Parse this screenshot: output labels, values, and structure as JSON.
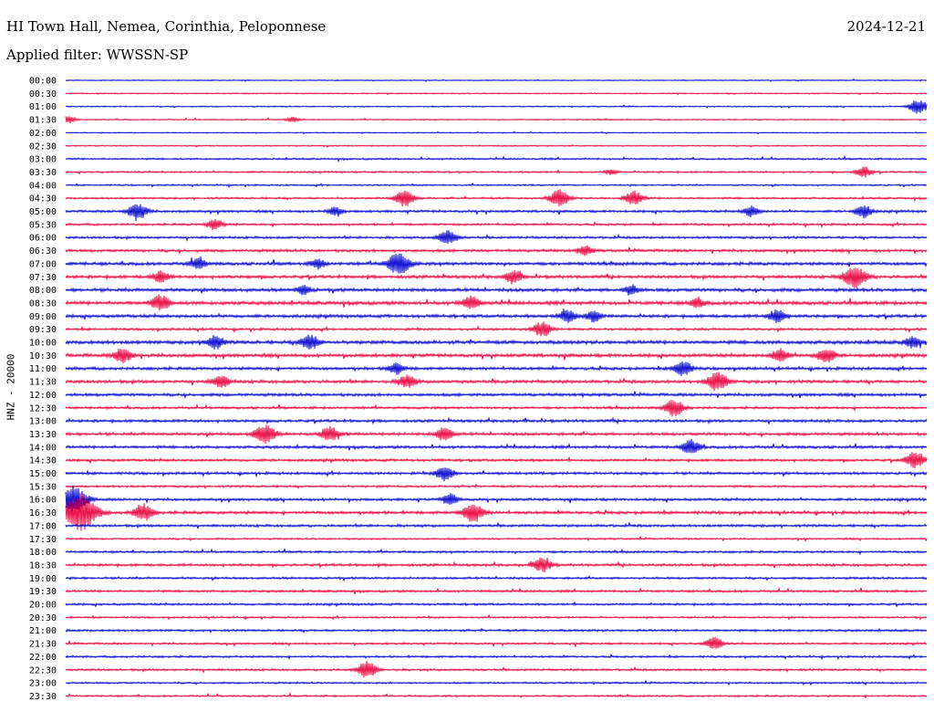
{
  "header": {
    "station": "HI Town Hall, Nemea, Corinthia, Peloponnese",
    "date": "2024-12-21",
    "filter": "Applied filter: WWSSN-SP"
  },
  "channel": "HNZ - 20000",
  "chart_data": {
    "type": "line",
    "title": "HI Town Hall, Nemea, Corinthia, Peloponnese",
    "date": "2024-12-21",
    "filter": "WWSSN-SP",
    "ylabel": "HNZ - 20000",
    "line_minutes": 30,
    "trace_colors": [
      "#0000cc",
      "#e8003c"
    ],
    "grid": false,
    "rows": [
      {
        "time": "00:00",
        "color": "#0000cc",
        "noise": 0.5
      },
      {
        "time": "00:30",
        "color": "#e8003c",
        "noise": 0.6
      },
      {
        "time": "01:00",
        "color": "#0000cc",
        "noise": 0.6
      },
      {
        "time": "01:30",
        "color": "#e8003c",
        "noise": 0.6
      },
      {
        "time": "02:00",
        "color": "#0000cc",
        "noise": 0.5
      },
      {
        "time": "02:30",
        "color": "#e8003c",
        "noise": 0.6
      },
      {
        "time": "03:00",
        "color": "#0000cc",
        "noise": 0.9
      },
      {
        "time": "03:30",
        "color": "#e8003c",
        "noise": 0.9
      },
      {
        "time": "04:00",
        "color": "#0000cc",
        "noise": 0.8
      },
      {
        "time": "04:30",
        "color": "#e8003c",
        "noise": 1.0
      },
      {
        "time": "05:00",
        "color": "#0000cc",
        "noise": 1.2
      },
      {
        "time": "05:30",
        "color": "#e8003c",
        "noise": 1.1
      },
      {
        "time": "06:00",
        "color": "#0000cc",
        "noise": 1.2
      },
      {
        "time": "06:30",
        "color": "#e8003c",
        "noise": 1.4
      },
      {
        "time": "07:00",
        "color": "#0000cc",
        "noise": 1.6
      },
      {
        "time": "07:30",
        "color": "#e8003c",
        "noise": 1.6
      },
      {
        "time": "08:00",
        "color": "#0000cc",
        "noise": 1.7
      },
      {
        "time": "08:30",
        "color": "#e8003c",
        "noise": 1.8
      },
      {
        "time": "09:00",
        "color": "#0000cc",
        "noise": 1.6
      },
      {
        "time": "09:30",
        "color": "#e8003c",
        "noise": 1.2
      },
      {
        "time": "10:00",
        "color": "#0000cc",
        "noise": 1.8
      },
      {
        "time": "10:30",
        "color": "#e8003c",
        "noise": 1.7
      },
      {
        "time": "11:00",
        "color": "#0000cc",
        "noise": 1.5
      },
      {
        "time": "11:30",
        "color": "#e8003c",
        "noise": 1.6
      },
      {
        "time": "12:00",
        "color": "#0000cc",
        "noise": 1.5
      },
      {
        "time": "12:30",
        "color": "#e8003c",
        "noise": 1.2
      },
      {
        "time": "13:00",
        "color": "#0000cc",
        "noise": 1.4
      },
      {
        "time": "13:30",
        "color": "#e8003c",
        "noise": 1.5
      },
      {
        "time": "14:00",
        "color": "#0000cc",
        "noise": 1.4
      },
      {
        "time": "14:30",
        "color": "#e8003c",
        "noise": 1.3
      },
      {
        "time": "15:00",
        "color": "#0000cc",
        "noise": 1.3
      },
      {
        "time": "15:30",
        "color": "#e8003c",
        "noise": 1.1
      },
      {
        "time": "16:00",
        "color": "#0000cc",
        "noise": 1.3
      },
      {
        "time": "16:30",
        "color": "#e8003c",
        "noise": 1.5
      },
      {
        "time": "17:00",
        "color": "#0000cc",
        "noise": 1.3
      },
      {
        "time": "17:30",
        "color": "#e8003c",
        "noise": 0.9
      },
      {
        "time": "18:00",
        "color": "#0000cc",
        "noise": 1.1
      },
      {
        "time": "18:30",
        "color": "#e8003c",
        "noise": 1.3
      },
      {
        "time": "19:00",
        "color": "#0000cc",
        "noise": 1.1
      },
      {
        "time": "19:30",
        "color": "#e8003c",
        "noise": 1.2
      },
      {
        "time": "20:00",
        "color": "#0000cc",
        "noise": 1.1
      },
      {
        "time": "20:30",
        "color": "#e8003c",
        "noise": 0.9
      },
      {
        "time": "21:00",
        "color": "#0000cc",
        "noise": 1.1
      },
      {
        "time": "21:30",
        "color": "#e8003c",
        "noise": 1.0
      },
      {
        "time": "22:00",
        "color": "#0000cc",
        "noise": 1.0
      },
      {
        "time": "22:30",
        "color": "#e8003c",
        "noise": 1.1
      },
      {
        "time": "23:00",
        "color": "#0000cc",
        "noise": 0.9
      },
      {
        "time": "23:30",
        "color": "#e8003c",
        "noise": 0.9
      }
    ],
    "events": [
      {
        "row": 2,
        "minute": 29.7,
        "amplitude": 8
      },
      {
        "row": 3,
        "minute": 0.1,
        "amplitude": 4
      },
      {
        "row": 3,
        "minute": 7.9,
        "amplitude": 3
      },
      {
        "row": 7,
        "minute": 19.0,
        "amplitude": 3
      },
      {
        "row": 7,
        "minute": 27.8,
        "amplitude": 6
      },
      {
        "row": 9,
        "minute": 11.8,
        "amplitude": 9
      },
      {
        "row": 9,
        "minute": 17.2,
        "amplitude": 9
      },
      {
        "row": 9,
        "minute": 19.8,
        "amplitude": 8
      },
      {
        "row": 10,
        "minute": 2.5,
        "amplitude": 9
      },
      {
        "row": 10,
        "minute": 9.4,
        "amplitude": 5
      },
      {
        "row": 10,
        "minute": 23.9,
        "amplitude": 6
      },
      {
        "row": 10,
        "minute": 27.8,
        "amplitude": 7
      },
      {
        "row": 11,
        "minute": 5.2,
        "amplitude": 6
      },
      {
        "row": 12,
        "minute": 13.3,
        "amplitude": 8
      },
      {
        "row": 13,
        "minute": 18.1,
        "amplitude": 5
      },
      {
        "row": 14,
        "minute": 4.6,
        "amplitude": 6
      },
      {
        "row": 14,
        "minute": 8.8,
        "amplitude": 5
      },
      {
        "row": 14,
        "minute": 11.6,
        "amplitude": 12
      },
      {
        "row": 15,
        "minute": 3.3,
        "amplitude": 6
      },
      {
        "row": 15,
        "minute": 15.6,
        "amplitude": 7
      },
      {
        "row": 15,
        "minute": 27.5,
        "amplitude": 12
      },
      {
        "row": 16,
        "minute": 8.3,
        "amplitude": 5
      },
      {
        "row": 16,
        "minute": 19.7,
        "amplitude": 5
      },
      {
        "row": 17,
        "minute": 3.3,
        "amplitude": 8
      },
      {
        "row": 17,
        "minute": 14.1,
        "amplitude": 7
      },
      {
        "row": 17,
        "minute": 22.0,
        "amplitude": 5
      },
      {
        "row": 18,
        "minute": 17.5,
        "amplitude": 7
      },
      {
        "row": 18,
        "minute": 18.4,
        "amplitude": 6
      },
      {
        "row": 18,
        "minute": 24.8,
        "amplitude": 7
      },
      {
        "row": 19,
        "minute": 16.6,
        "amplitude": 8
      },
      {
        "row": 20,
        "minute": 5.2,
        "amplitude": 7
      },
      {
        "row": 20,
        "minute": 8.5,
        "amplitude": 8
      },
      {
        "row": 20,
        "minute": 29.5,
        "amplitude": 6
      },
      {
        "row": 21,
        "minute": 2.0,
        "amplitude": 8
      },
      {
        "row": 21,
        "minute": 24.9,
        "amplitude": 7
      },
      {
        "row": 21,
        "minute": 26.5,
        "amplitude": 8
      },
      {
        "row": 22,
        "minute": 11.5,
        "amplitude": 6
      },
      {
        "row": 22,
        "minute": 21.5,
        "amplitude": 8
      },
      {
        "row": 23,
        "minute": 5.4,
        "amplitude": 7
      },
      {
        "row": 23,
        "minute": 11.9,
        "amplitude": 7
      },
      {
        "row": 23,
        "minute": 22.7,
        "amplitude": 10
      },
      {
        "row": 25,
        "minute": 21.2,
        "amplitude": 9
      },
      {
        "row": 27,
        "minute": 7.1,
        "amplitude": 6
      },
      {
        "row": 27,
        "minute": 6.8,
        "amplitude": 7
      },
      {
        "row": 27,
        "minute": 13.2,
        "amplitude": 7
      },
      {
        "row": 27,
        "minute": 9.2,
        "amplitude": 8
      },
      {
        "row": 28,
        "minute": 21.8,
        "amplitude": 8
      },
      {
        "row": 29,
        "minute": 29.6,
        "amplitude": 9
      },
      {
        "row": 30,
        "minute": 13.2,
        "amplitude": 8
      },
      {
        "row": 32,
        "minute": 0.3,
        "amplitude": 14
      },
      {
        "row": 32,
        "minute": 13.4,
        "amplitude": 6
      },
      {
        "row": 33,
        "minute": 0.5,
        "amplitude": 20
      },
      {
        "row": 33,
        "minute": 2.7,
        "amplitude": 9
      },
      {
        "row": 33,
        "minute": 14.2,
        "amplitude": 10
      },
      {
        "row": 37,
        "minute": 16.6,
        "amplitude": 8
      },
      {
        "row": 43,
        "minute": 22.6,
        "amplitude": 7
      },
      {
        "row": 45,
        "minute": 10.5,
        "amplitude": 9
      }
    ]
  }
}
